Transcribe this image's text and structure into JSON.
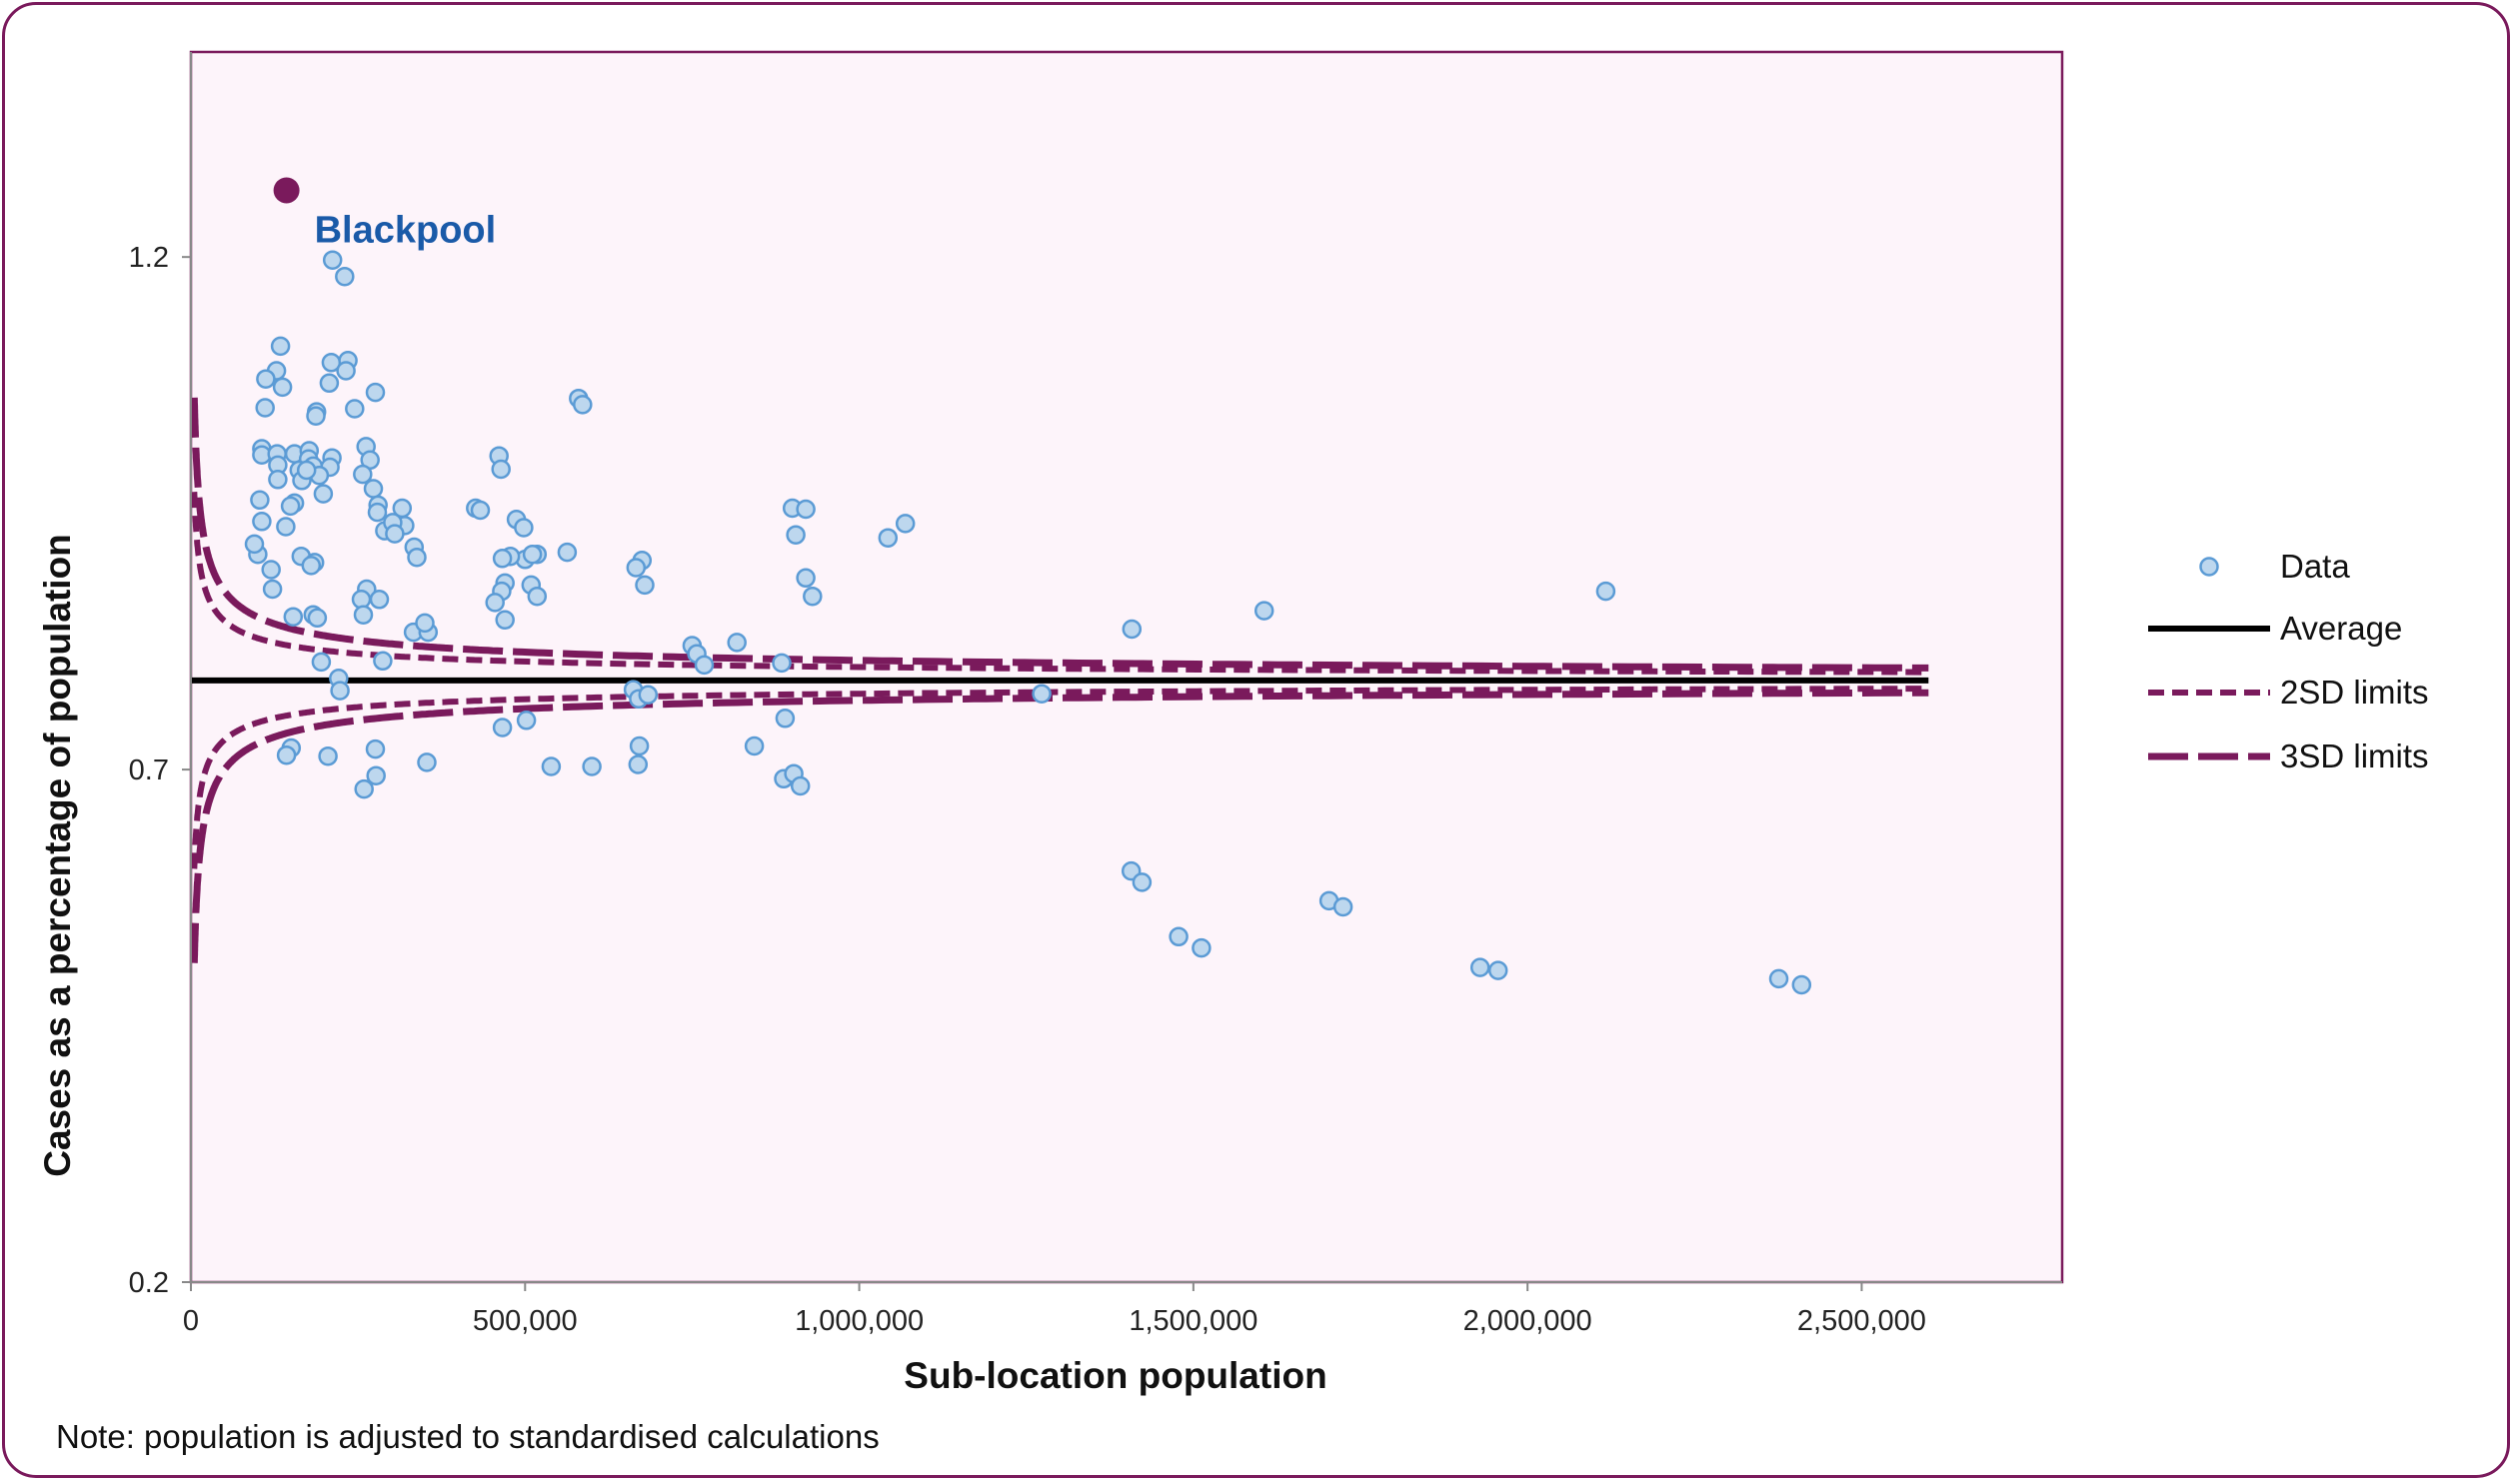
{
  "note": "Note: population is adjusted to standardised calculations",
  "colors": {
    "frame": "#7a1a5c",
    "limits": "#7a1a5c",
    "average": "#000000",
    "point_fill": "#bdd7ee",
    "point_stroke": "#5b9bd5",
    "highlight": "#7a1a5c",
    "annotation": "#1a5aa8"
  },
  "chart_data": {
    "type": "scatter",
    "title": "",
    "xlabel": "Sub-location population",
    "ylabel": "Cases as a percentage of population",
    "xlim": [
      0,
      2800000
    ],
    "ylim": [
      0.2,
      1.4
    ],
    "x_ticks": [
      0,
      500000,
      1000000,
      1500000,
      2000000,
      2500000
    ],
    "x_tick_labels": [
      "0",
      "500,000",
      "1,000,000",
      "1,500,000",
      "2,000,000",
      "2,500,000"
    ],
    "y_ticks": [
      0.2,
      0.7,
      1.2
    ],
    "y_tick_labels": [
      "0.2",
      "0.7",
      "1.2"
    ],
    "grid": false,
    "legend_position": "right",
    "legend": [
      "Data",
      "Average",
      "2SD limits",
      "3SD limits"
    ],
    "average": 0.787,
    "control_limits": {
      "x_max": 2600000,
      "sd_1": 0.065,
      "sd_1_pop": 10000,
      "sd_multipliers": [
        2,
        3
      ]
    },
    "highlight": {
      "label": "Blackpool",
      "x": 143000,
      "y": 1.265
    },
    "series": [
      {
        "name": "Data",
        "points": [
          [
            212000,
            1.197
          ],
          [
            230000,
            1.181
          ],
          [
            134000,
            1.113
          ],
          [
            128000,
            1.089
          ],
          [
            112000,
            1.081
          ],
          [
            210000,
            1.097
          ],
          [
            235000,
            1.099
          ],
          [
            232000,
            1.089
          ],
          [
            207000,
            1.077
          ],
          [
            137000,
            1.073
          ],
          [
            276000,
            1.068
          ],
          [
            111000,
            1.053
          ],
          [
            245000,
            1.052
          ],
          [
            188000,
            1.049
          ],
          [
            187000,
            1.045
          ],
          [
            106000,
            1.013
          ],
          [
            106000,
            1.007
          ],
          [
            129000,
            1.008
          ],
          [
            155000,
            1.008
          ],
          [
            177000,
            1.011
          ],
          [
            176000,
            1.003
          ],
          [
            211000,
            1.004
          ],
          [
            208000,
            0.995
          ],
          [
            262000,
            1.015
          ],
          [
            268000,
            1.002
          ],
          [
            130000,
            0.997
          ],
          [
            162000,
            0.992
          ],
          [
            183000,
            0.996
          ],
          [
            192000,
            0.987
          ],
          [
            257000,
            0.988
          ],
          [
            130000,
            0.983
          ],
          [
            166000,
            0.982
          ],
          [
            173000,
            0.992
          ],
          [
            273000,
            0.974
          ],
          [
            198000,
            0.969
          ],
          [
            103000,
            0.963
          ],
          [
            155000,
            0.96
          ],
          [
            149000,
            0.957
          ],
          [
            280000,
            0.958
          ],
          [
            279000,
            0.951
          ],
          [
            316000,
            0.955
          ],
          [
            106000,
            0.942
          ],
          [
            142000,
            0.937
          ],
          [
            290000,
            0.933
          ],
          [
            320000,
            0.938
          ],
          [
            302000,
            0.941
          ],
          [
            305000,
            0.93
          ],
          [
            334000,
            0.917
          ],
          [
            338000,
            0.907
          ],
          [
            100000,
            0.91
          ],
          [
            165000,
            0.908
          ],
          [
            185000,
            0.902
          ],
          [
            180000,
            0.899
          ],
          [
            120000,
            0.895
          ],
          [
            122000,
            0.876
          ],
          [
            263000,
            0.876
          ],
          [
            255000,
            0.866
          ],
          [
            282000,
            0.866
          ],
          [
            258000,
            0.851
          ],
          [
            153000,
            0.849
          ],
          [
            183000,
            0.851
          ],
          [
            189000,
            0.848
          ],
          [
            333000,
            0.834
          ],
          [
            355000,
            0.834
          ],
          [
            350000,
            0.843
          ],
          [
            461000,
            1.006
          ],
          [
            464000,
            0.993
          ],
          [
            426000,
            0.955
          ],
          [
            433000,
            0.953
          ],
          [
            487000,
            0.944
          ],
          [
            498000,
            0.936
          ],
          [
            518000,
            0.91
          ],
          [
            500000,
            0.905
          ],
          [
            511000,
            0.91
          ],
          [
            478000,
            0.908
          ],
          [
            466000,
            0.906
          ],
          [
            563000,
            0.912
          ],
          [
            580000,
            1.062
          ],
          [
            586000,
            1.056
          ],
          [
            509000,
            0.88
          ],
          [
            470000,
            0.882
          ],
          [
            465000,
            0.874
          ],
          [
            518000,
            0.869
          ],
          [
            455000,
            0.863
          ],
          [
            470000,
            0.846
          ],
          [
            675000,
            0.904
          ],
          [
            666000,
            0.897
          ],
          [
            679000,
            0.88
          ],
          [
            900000,
            0.955
          ],
          [
            920000,
            0.954
          ],
          [
            905000,
            0.929
          ],
          [
            920000,
            0.887
          ],
          [
            930000,
            0.869
          ],
          [
            1069000,
            0.94
          ],
          [
            1043000,
            0.926
          ],
          [
            817000,
            0.824
          ],
          [
            750000,
            0.821
          ],
          [
            757000,
            0.813
          ],
          [
            768000,
            0.802
          ],
          [
            884000,
            0.804
          ],
          [
            662000,
            0.778
          ],
          [
            670000,
            0.769
          ],
          [
            684000,
            0.773
          ],
          [
            1273000,
            0.774
          ],
          [
            1408000,
            0.837
          ],
          [
            1606000,
            0.855
          ],
          [
            2117000,
            0.874
          ],
          [
            95000,
            0.92
          ],
          [
            195000,
            0.805
          ],
          [
            287000,
            0.806
          ],
          [
            221000,
            0.789
          ],
          [
            223000,
            0.777
          ],
          [
            150000,
            0.721
          ],
          [
            143000,
            0.714
          ],
          [
            205000,
            0.713
          ],
          [
            276000,
            0.72
          ],
          [
            277000,
            0.694
          ],
          [
            259000,
            0.681
          ],
          [
            353000,
            0.707
          ],
          [
            466000,
            0.741
          ],
          [
            502000,
            0.748
          ],
          [
            539000,
            0.703
          ],
          [
            600000,
            0.703
          ],
          [
            669000,
            0.705
          ],
          [
            671000,
            0.723
          ],
          [
            843000,
            0.723
          ],
          [
            889000,
            0.75
          ],
          [
            887000,
            0.691
          ],
          [
            902000,
            0.696
          ],
          [
            912000,
            0.684
          ],
          [
            1407000,
            0.601
          ],
          [
            1423000,
            0.59
          ],
          [
            1478000,
            0.537
          ],
          [
            1512000,
            0.526
          ],
          [
            1703000,
            0.572
          ],
          [
            1724000,
            0.566
          ],
          [
            1929000,
            0.507
          ],
          [
            1956000,
            0.504
          ],
          [
            2376000,
            0.496
          ],
          [
            2410000,
            0.49
          ]
        ]
      }
    ]
  }
}
